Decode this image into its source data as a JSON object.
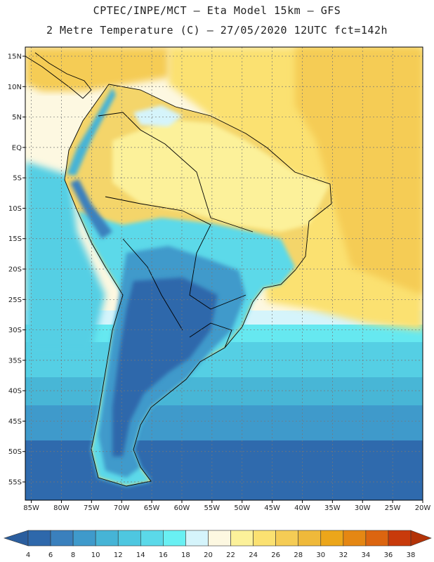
{
  "header": {
    "title_line1": "CPTEC/INPE/MCT –   Eta Model 15km – GFS",
    "title_line2": "2 Metre Temperature (C) – 27/05/2020 12UTC fct=142h"
  },
  "map": {
    "extent": {
      "lon_min": -86,
      "lon_max": -20,
      "lat_min": -58,
      "lat_max": 16.5
    },
    "lat_ticks": [
      {
        "value": 15,
        "label": "15N"
      },
      {
        "value": 10,
        "label": "10N"
      },
      {
        "value": 5,
        "label": "5N"
      },
      {
        "value": 0,
        "label": "EQ"
      },
      {
        "value": -5,
        "label": "5S"
      },
      {
        "value": -10,
        "label": "10S"
      },
      {
        "value": -15,
        "label": "15S"
      },
      {
        "value": -20,
        "label": "20S"
      },
      {
        "value": -25,
        "label": "25S"
      },
      {
        "value": -30,
        "label": "30S"
      },
      {
        "value": -35,
        "label": "35S"
      },
      {
        "value": -40,
        "label": "40S"
      },
      {
        "value": -45,
        "label": "45S"
      },
      {
        "value": -50,
        "label": "50S"
      },
      {
        "value": -55,
        "label": "55S"
      }
    ],
    "lon_ticks": [
      {
        "value": -85,
        "label": "85W"
      },
      {
        "value": -80,
        "label": "80W"
      },
      {
        "value": -75,
        "label": "75W"
      },
      {
        "value": -70,
        "label": "70W"
      },
      {
        "value": -65,
        "label": "65W"
      },
      {
        "value": -60,
        "label": "60W"
      },
      {
        "value": -55,
        "label": "55W"
      },
      {
        "value": -50,
        "label": "50W"
      },
      {
        "value": -45,
        "label": "45W"
      },
      {
        "value": -40,
        "label": "40W"
      },
      {
        "value": -35,
        "label": "35W"
      },
      {
        "value": -30,
        "label": "30W"
      },
      {
        "value": -25,
        "label": "25W"
      },
      {
        "value": -20,
        "label": "20W"
      }
    ]
  },
  "colorbar": {
    "labels": [
      "4",
      "6",
      "8",
      "10",
      "12",
      "14",
      "16",
      "18",
      "20",
      "22",
      "24",
      "26",
      "28",
      "30",
      "32",
      "34",
      "36",
      "38"
    ],
    "colors": [
      "#2e68ab",
      "#3a80bd",
      "#3f9acb",
      "#46b4d6",
      "#4ec7e0",
      "#5bd9e9",
      "#69f0f3",
      "#d5f4fb",
      "#fdf8e1",
      "#fcf19a",
      "#fbe171",
      "#f5cc55",
      "#efb93a",
      "#eca61a",
      "#e58713",
      "#dc6510",
      "#c83a0b"
    ],
    "under_color": "#2b5e9e",
    "over_color": "#b33308"
  }
}
